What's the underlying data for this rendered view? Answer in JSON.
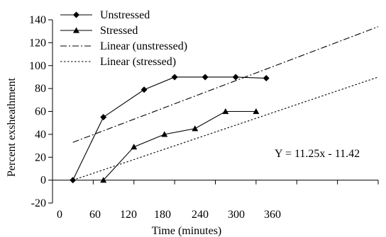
{
  "chart_data": {
    "type": "line",
    "title": "",
    "xlabel": "Time (minutes)",
    "ylabel": "Percent exsheathment",
    "xlim": [
      0,
      480
    ],
    "ylim": [
      -20,
      140
    ],
    "x_ticks": [
      0,
      60,
      120,
      180,
      240,
      300,
      360
    ],
    "x_tick_labels": [
      "0",
      "60",
      "120",
      "180",
      "240",
      "300",
      "360"
    ],
    "y_ticks": [
      -20,
      0,
      20,
      40,
      60,
      80,
      100,
      120,
      140
    ],
    "y_tick_labels": [
      "-20",
      "0",
      "20",
      "40",
      "60",
      "80",
      "100",
      "120",
      "140"
    ],
    "grid": false,
    "legend_position": "top-left",
    "series": [
      {
        "name": "Unstressed",
        "marker": "diamond",
        "x": [
          30,
          75,
          135,
          180,
          225,
          270,
          315
        ],
        "y": [
          0,
          55,
          79,
          90,
          90,
          90,
          89
        ]
      },
      {
        "name": "Stressed",
        "marker": "triangle",
        "x": [
          75,
          120,
          165,
          210,
          255,
          300
        ],
        "y": [
          0,
          29,
          40,
          45,
          60,
          60
        ]
      }
    ],
    "trendlines": [
      {
        "name": "Linear (unstressed)",
        "style": "dash-dot",
        "x": [
          30,
          480
        ],
        "y": [
          33,
          134
        ]
      },
      {
        "name": "Linear (stressed)",
        "style": "dotted",
        "x": [
          30,
          480
        ],
        "y": [
          0,
          90
        ]
      }
    ],
    "annotations": [
      {
        "text": "Y = 11.25x - 11.42"
      }
    ],
    "colors": {
      "ink": "#000000",
      "background": "#ffffff"
    }
  }
}
